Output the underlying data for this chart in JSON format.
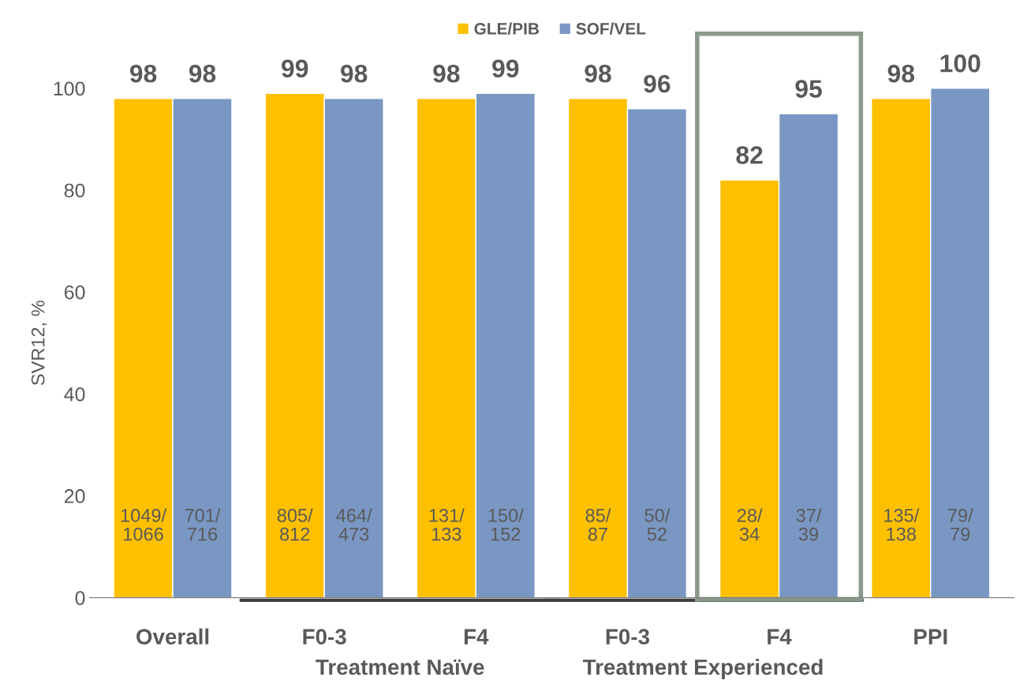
{
  "chart_data": {
    "type": "bar",
    "ylabel": "SVR12, %",
    "categories": [
      "Overall",
      "F0-3",
      "F4",
      "F0-3",
      "F4",
      "PPI"
    ],
    "series": [
      {
        "name": "GLE/PIB",
        "color": "#ffc000",
        "values": [
          98,
          99,
          98,
          98,
          82,
          98
        ]
      },
      {
        "name": "SOF/VEL",
        "color": "#7a97c3",
        "values": [
          98,
          98,
          99,
          96,
          95,
          100
        ]
      }
    ],
    "ylim": [
      0,
      100
    ],
    "yticks": [
      0,
      20,
      40,
      60,
      80,
      100
    ],
    "data_labels": true,
    "grid": false,
    "legend": "top",
    "annotations": [
      "1049/\n1066",
      "701/\n716",
      "805/\n812",
      "464/\n473",
      "131/\n133",
      "150/\n152",
      "85/\n87",
      "50/\n52",
      "28/\n34",
      "37/\n39",
      "135/\n138",
      "79/\n79",
      "Treatment Naïve",
      "Treatment Experienced"
    ]
  }
}
